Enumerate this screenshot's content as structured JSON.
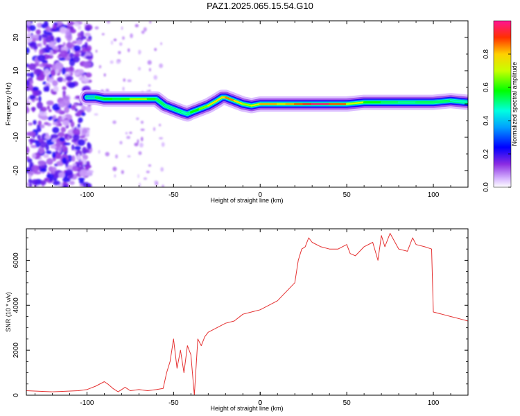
{
  "title": "PAZ1.2025.065.15.54.G10",
  "colors": {
    "snr_line": "#e53030",
    "scatter_purple": "#8a2be2",
    "frame": "#000000"
  },
  "chart_data": [
    {
      "type": "heatmap",
      "xlabel": "Height of straight line (km)",
      "ylabel": "Frequency (Hz)",
      "xlim": [
        -135,
        120
      ],
      "ylim": [
        -25,
        25
      ],
      "x_ticks": [
        "-100",
        "-50",
        "0",
        "50",
        "100"
      ],
      "y_ticks": [
        "-20",
        "-10",
        "0",
        "10",
        "20"
      ],
      "colorbar": {
        "label": "Normalized spectral amplitude",
        "range": [
          0,
          1
        ],
        "ticks": [
          "0.0",
          "0.2",
          "0.4",
          "0.6",
          "0.8"
        ],
        "colormap": "gist_rainbow_r_white_low"
      },
      "ridge": {
        "x": [
          -100,
          -95,
          -90,
          -85,
          -80,
          -75,
          -70,
          -65,
          -60,
          -55,
          -50,
          -45,
          -42,
          -40,
          -35,
          -30,
          -25,
          -22,
          -20,
          -15,
          -10,
          -5,
          0,
          5,
          10,
          15,
          20,
          25,
          30,
          40,
          50,
          60,
          70,
          80,
          90,
          100,
          110,
          120
        ],
        "y": [
          2,
          2,
          1.5,
          1.5,
          1.5,
          1.5,
          1.5,
          1.5,
          1.5,
          -0.5,
          -1.5,
          -2.5,
          -3,
          -2.5,
          -1.5,
          -0.5,
          1,
          2,
          2,
          1,
          0,
          -0.5,
          0,
          0,
          0,
          0,
          0,
          0,
          0,
          0,
          0,
          0.5,
          0.5,
          0.5,
          0.5,
          0.5,
          1,
          0.5
        ],
        "amplitude": [
          0.3,
          0.5,
          0.6,
          0.55,
          0.55,
          0.65,
          0.7,
          0.65,
          0.55,
          0.5,
          0.5,
          0.5,
          0.45,
          0.55,
          0.6,
          0.7,
          0.8,
          0.75,
          0.85,
          0.85,
          0.7,
          0.65,
          0.8,
          0.85,
          0.8,
          0.75,
          0.9,
          0.85,
          1.0,
          0.95,
          0.8,
          0.6,
          0.55,
          0.5,
          0.5,
          0.55,
          0.5,
          0.45
        ]
      }
    },
    {
      "type": "line",
      "xlabel": "Height of straight line (km)",
      "ylabel": "SNR (10 * v/v)",
      "xlim": [
        -135,
        120
      ],
      "ylim": [
        0,
        7400
      ],
      "x_ticks": [
        "-100",
        "-50",
        "0",
        "50",
        "100"
      ],
      "y_ticks": [
        "0",
        "2000",
        "4000",
        "6000"
      ],
      "series": [
        {
          "x": [
            -135,
            -120,
            -105,
            -100,
            -95,
            -90,
            -88,
            -85,
            -82,
            -80,
            -78,
            -75,
            -70,
            -65,
            -60,
            -56,
            -54,
            -52,
            -50,
            -48,
            -46,
            -44,
            -42,
            -40,
            -38,
            -36,
            -34,
            -32,
            -30,
            -25,
            -20,
            -15,
            -10,
            -5,
            0,
            5,
            10,
            15,
            20,
            22,
            24,
            26,
            28,
            30,
            35,
            40,
            45,
            50,
            52,
            55,
            60,
            65,
            68,
            70,
            72,
            75,
            80,
            85,
            88,
            90,
            95,
            99,
            100,
            105,
            110,
            115,
            120
          ],
          "y": [
            200,
            150,
            200,
            250,
            400,
            600,
            500,
            300,
            150,
            250,
            350,
            200,
            250,
            200,
            250,
            300,
            1000,
            1500,
            2500,
            1200,
            2000,
            1000,
            2200,
            1800,
            0,
            2500,
            2200,
            2600,
            2800,
            3000,
            3200,
            3300,
            3600,
            3700,
            3800,
            4000,
            4200,
            4600,
            5000,
            6000,
            6500,
            6600,
            7000,
            6800,
            6600,
            6500,
            6500,
            6700,
            6300,
            6200,
            6600,
            6800,
            6000,
            7100,
            6600,
            7200,
            6500,
            6400,
            7000,
            6700,
            6600,
            6500,
            3700,
            3600,
            3500,
            3400,
            3300
          ]
        }
      ]
    }
  ]
}
